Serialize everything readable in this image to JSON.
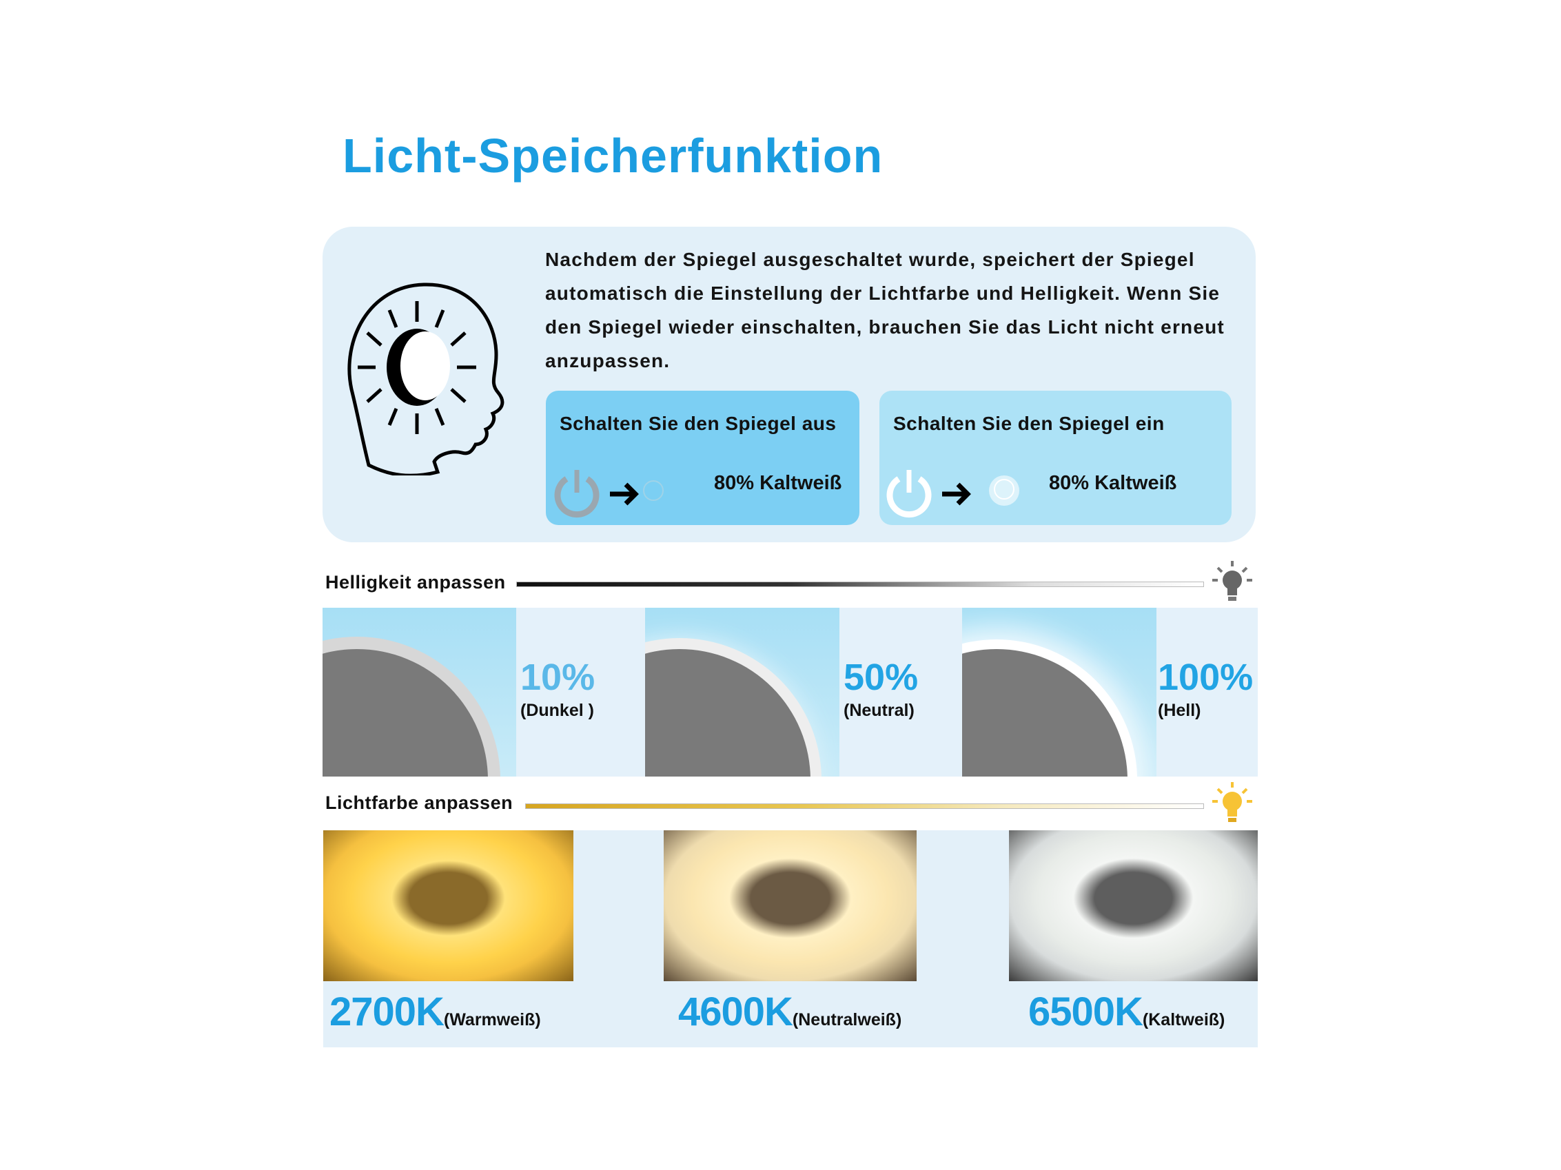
{
  "title": "Licht-Speicherfunktion",
  "description": "Nachdem der Spiegel ausgeschaltet wurde, speichert der Spiegel automatisch die Einstellung der Lichtfarbe und Helligkeit. Wenn Sie den Spiegel wieder einschalten, brauchen Sie das Licht nicht erneut anzupassen.",
  "steps": [
    {
      "label": "Schalten Sie den Spiegel aus",
      "value": "80% Kaltweiß",
      "icon": "power-icon",
      "color": "#7ccff3"
    },
    {
      "label": "Schalten Sie den Spiegel ein",
      "value": "80% Kaltweiß",
      "icon": "power-icon",
      "color": "#ade2f6"
    }
  ],
  "brightness": {
    "label": "Helligkeit anpassen",
    "icon": "lightbulb-icon",
    "levels": [
      {
        "value": "10%",
        "name": "(Dunkel )"
      },
      {
        "value": "50%",
        "name": "(Neutral)"
      },
      {
        "value": "100%",
        "name": "(Hell)"
      }
    ]
  },
  "color_temp": {
    "label": "Lichtfarbe anpassen",
    "icon": "lightbulb-icon",
    "levels": [
      {
        "value": "2700K",
        "name": "(Warmweiß)"
      },
      {
        "value": "4600K",
        "name": "(Neutralweiß)"
      },
      {
        "value": "6500K",
        "name": "(Kaltweiß)"
      }
    ]
  },
  "colors": {
    "accent": "#1b9de0",
    "panel": "#e2f0f9",
    "bulb_warm": "#f7c335"
  }
}
